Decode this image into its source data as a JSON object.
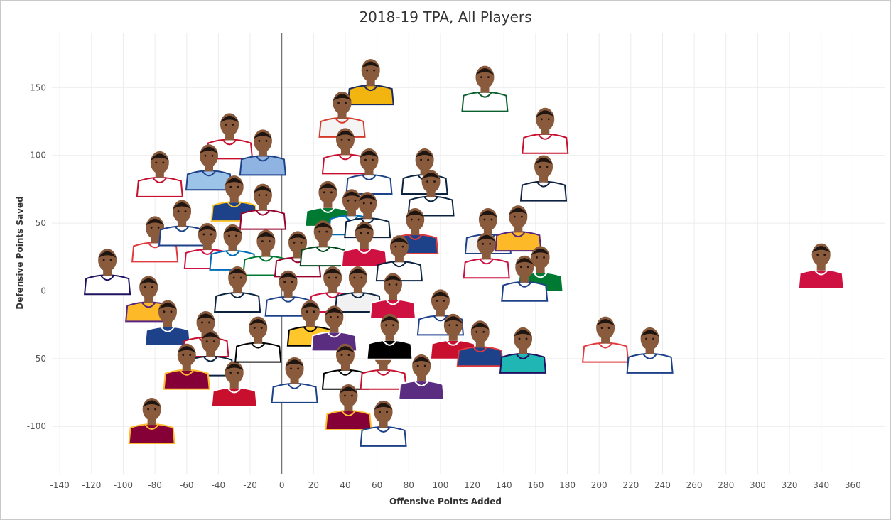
{
  "colors": {
    "grid": "#ececec",
    "zero_line": "#555555",
    "tick_text": "#555555",
    "skin": "#8a5a3c",
    "hair": "#1e1410",
    "background": "#ffffff"
  },
  "chart_data": {
    "type": "scatter",
    "title": "2018-19 TPA, All Players",
    "xlabel": "Offensive Points Added",
    "ylabel": "Defensive Points Saved",
    "xlim": [
      -145,
      380
    ],
    "ylim": [
      -135,
      190
    ],
    "x_ticks": [
      -140,
      -120,
      -100,
      -80,
      -60,
      -40,
      -20,
      0,
      20,
      40,
      60,
      80,
      100,
      120,
      140,
      160,
      180,
      200,
      220,
      240,
      260,
      280,
      300,
      320,
      340,
      360
    ],
    "y_ticks": [
      -100,
      -50,
      0,
      50,
      100,
      150
    ],
    "grid": true,
    "marker": "player headshot",
    "points": [
      {
        "x": 56,
        "y": 148,
        "jersey": "#f2b50f",
        "trim": "#1d2a5b"
      },
      {
        "x": 128,
        "y": 143,
        "jersey": "#ffffff",
        "trim": "#0b5e2e"
      },
      {
        "x": 38,
        "y": 124,
        "jersey": "#f4f4f4",
        "trim": "#d43a2a"
      },
      {
        "x": 166,
        "y": 112,
        "jersey": "#ffffff",
        "trim": "#c8102e"
      },
      {
        "x": 40,
        "y": 97,
        "jersey": "#ffffff",
        "trim": "#c8102e"
      },
      {
        "x": 55,
        "y": 82,
        "jersey": "#ffffff",
        "trim": "#1d428a"
      },
      {
        "x": 90,
        "y": 82,
        "jersey": "#ffffff",
        "trim": "#0c2340"
      },
      {
        "x": 165,
        "y": 77,
        "jersey": "#ffffff",
        "trim": "#0e2240"
      },
      {
        "x": 94,
        "y": 66,
        "jersey": "#ffffff",
        "trim": "#0c2340"
      },
      {
        "x": -77,
        "y": 80,
        "jersey": "#ffffff",
        "trim": "#c8102e"
      },
      {
        "x": -33,
        "y": 108,
        "jersey": "#ffffff",
        "trim": "#c8102e"
      },
      {
        "x": -12,
        "y": 96,
        "jersey": "#8fb4e2",
        "trim": "#1d428a"
      },
      {
        "x": -46,
        "y": 85,
        "jersey": "#9cc3e8",
        "trim": "#1d428a"
      },
      {
        "x": -30,
        "y": 62,
        "jersey": "#1d428a",
        "trim": "#ffc72c"
      },
      {
        "x": -12,
        "y": 56,
        "jersey": "#ffffff",
        "trim": "#98002e"
      },
      {
        "x": 29,
        "y": 58,
        "jersey": "#007a33",
        "trim": "#ffffff"
      },
      {
        "x": 44,
        "y": 52,
        "jersey": "#ffffff",
        "trim": "#006bb6"
      },
      {
        "x": 54,
        "y": 50,
        "jersey": "#ffffff",
        "trim": "#0c2340"
      },
      {
        "x": 130,
        "y": 38,
        "jersey": "#f5f5f5",
        "trim": "#1d428a"
      },
      {
        "x": 149,
        "y": 40,
        "jersey": "#fdb927",
        "trim": "#552583"
      },
      {
        "x": 84,
        "y": 38,
        "jersey": "#1d428a",
        "trim": "#e03a3e"
      },
      {
        "x": -80,
        "y": 32,
        "jersey": "#ffffff",
        "trim": "#e03a3e"
      },
      {
        "x": -63,
        "y": 44,
        "jersey": "#ffffff",
        "trim": "#1d428a"
      },
      {
        "x": -47,
        "y": 27,
        "jersey": "#ffffff",
        "trim": "#ce1141"
      },
      {
        "x": -31,
        "y": 26,
        "jersey": "#ffffff",
        "trim": "#006bb6"
      },
      {
        "x": -10,
        "y": 22,
        "jersey": "#ffffff",
        "trim": "#007a33"
      },
      {
        "x": 10,
        "y": 21,
        "jersey": "#ffffff",
        "trim": "#98002e"
      },
      {
        "x": 26,
        "y": 29,
        "jersey": "#ffffff",
        "trim": "#00471b"
      },
      {
        "x": 52,
        "y": 28,
        "jersey": "#ce1141",
        "trim": "#ffffff"
      },
      {
        "x": 74,
        "y": 18,
        "jersey": "#ffffff",
        "trim": "#0c2340"
      },
      {
        "x": 129,
        "y": 20,
        "jersey": "#ffffff",
        "trim": "#ce1141"
      },
      {
        "x": 163,
        "y": 10,
        "jersey": "#007a33",
        "trim": "#ffffff"
      },
      {
        "x": 153,
        "y": 3,
        "jersey": "#ffffff",
        "trim": "#1d428a"
      },
      {
        "x": -110,
        "y": 8,
        "jersey": "#ffffff",
        "trim": "#1d1160"
      },
      {
        "x": -84,
        "y": -12,
        "jersey": "#fdb927",
        "trim": "#552583"
      },
      {
        "x": -72,
        "y": -30,
        "jersey": "#1d428a",
        "trim": "#ffffff"
      },
      {
        "x": -48,
        "y": -38,
        "jersey": "#ffffff",
        "trim": "#c8102e"
      },
      {
        "x": -28,
        "y": -5,
        "jersey": "#ffffff",
        "trim": "#0c2340"
      },
      {
        "x": 4,
        "y": -8,
        "jersey": "#ffffff",
        "trim": "#1d428a"
      },
      {
        "x": 32,
        "y": -5,
        "jersey": "#ffffff",
        "trim": "#ce1141"
      },
      {
        "x": 48,
        "y": -5,
        "jersey": "#f1f1f1",
        "trim": "#0c2340"
      },
      {
        "x": 70,
        "y": -10,
        "jersey": "#ce1141",
        "trim": "#ffffff"
      },
      {
        "x": 100,
        "y": -22,
        "jersey": "#ffffff",
        "trim": "#1d428a"
      },
      {
        "x": 108,
        "y": -40,
        "jersey": "#c8102e",
        "trim": "#ffffff"
      },
      {
        "x": 125,
        "y": -45,
        "jersey": "#1d428a",
        "trim": "#e03a3e"
      },
      {
        "x": 152,
        "y": -50,
        "jersey": "#1fb6b3",
        "trim": "#1d1160"
      },
      {
        "x": 204,
        "y": -42,
        "jersey": "#ffffff",
        "trim": "#e03a3e"
      },
      {
        "x": 232,
        "y": -50,
        "jersey": "#ffffff",
        "trim": "#1d428a"
      },
      {
        "x": 340,
        "y": 12,
        "jersey": "#ce1141",
        "trim": "#ffffff"
      },
      {
        "x": -45,
        "y": -52,
        "jersey": "#ffffff",
        "trim": "#0c2340"
      },
      {
        "x": -60,
        "y": -62,
        "jersey": "#860038",
        "trim": "#fdbb30"
      },
      {
        "x": -30,
        "y": -75,
        "jersey": "#c8102e",
        "trim": "#ffffff"
      },
      {
        "x": -15,
        "y": -42,
        "jersey": "#ffffff",
        "trim": "#000000"
      },
      {
        "x": 18,
        "y": -30,
        "jersey": "#ffc72c",
        "trim": "#000000"
      },
      {
        "x": 33,
        "y": -34,
        "jersey": "#5a2d81",
        "trim": "#ffffff"
      },
      {
        "x": 40,
        "y": -62,
        "jersey": "#ffffff",
        "trim": "#000000"
      },
      {
        "x": 64,
        "y": -62,
        "jersey": "#ffffff",
        "trim": "#c8102e"
      },
      {
        "x": 68,
        "y": -40,
        "jersey": "#000000",
        "trim": "#ffffff"
      },
      {
        "x": 88,
        "y": -70,
        "jersey": "#5a2d81",
        "trim": "#ffffff"
      },
      {
        "x": 8,
        "y": -72,
        "jersey": "#ffffff",
        "trim": "#1d428a"
      },
      {
        "x": 42,
        "y": -92,
        "jersey": "#860038",
        "trim": "#fdbb30"
      },
      {
        "x": 64,
        "y": -104,
        "jersey": "#ffffff",
        "trim": "#1d428a"
      },
      {
        "x": -82,
        "y": -102,
        "jersey": "#860038",
        "trim": "#fdbb30"
      }
    ]
  }
}
